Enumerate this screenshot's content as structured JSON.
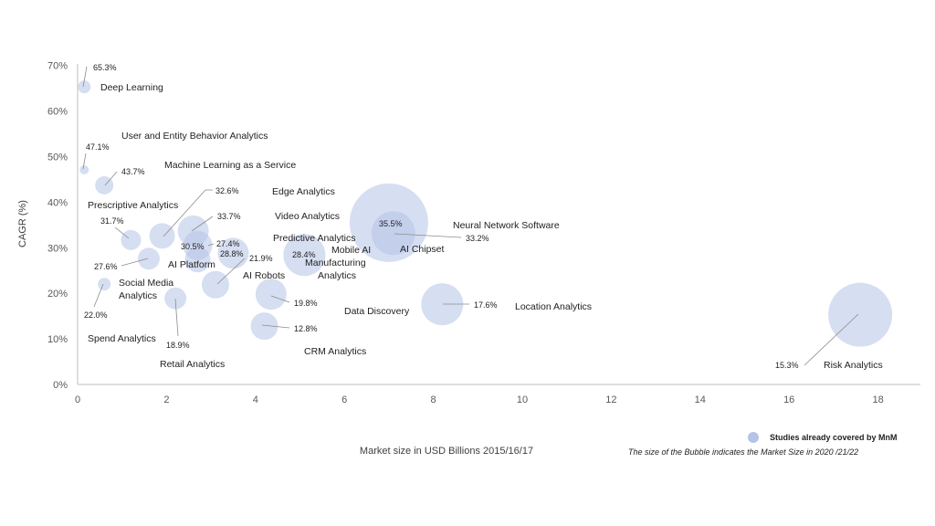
{
  "chart_data": {
    "type": "scatter",
    "subtype": "bubble",
    "xlabel": "Market size in USD Billions 2015/16/17",
    "ylabel": "CAGR (%)",
    "xlim": [
      0,
      19
    ],
    "ylim": [
      0,
      70
    ],
    "xticks": [
      "0",
      "2",
      "4",
      "6",
      "8",
      "10",
      "12",
      "14",
      "16",
      "18"
    ],
    "yticks": [
      "0%",
      "10%",
      "20%",
      "30%",
      "40%",
      "50%",
      "60%",
      "70%"
    ],
    "grid": false,
    "legend": {
      "label": "Studies already covered by MnM",
      "position": "bottom-right",
      "color": "#b4c3e6"
    },
    "note": "The size of the Bubble indicates the Market Size in 2020 /21/22",
    "points": [
      {
        "name": "Deep Learning",
        "x": 0.15,
        "y": 65.3,
        "pct": "65.3%",
        "r": 7
      },
      {
        "name": "User and Entity Behavior Analytics",
        "x": 0.15,
        "y": 47.1,
        "pct": "47.1%",
        "r": 5
      },
      {
        "name": "Machine Learning as a Service",
        "x": 0.6,
        "y": 43.7,
        "pct": "43.7%",
        "r": 10
      },
      {
        "name": "Prescriptive Analytics",
        "x": 1.2,
        "y": 31.7,
        "pct": "31.7%",
        "r": 11
      },
      {
        "name": "Edge Analytics",
        "x": 1.9,
        "y": 32.6,
        "pct": "32.6%",
        "r": 14
      },
      {
        "name": "Video Analytics",
        "x": 2.6,
        "y": 33.7,
        "pct": "33.7%",
        "r": 17
      },
      {
        "name": "AI Platform",
        "x": 1.6,
        "y": 27.6,
        "pct": "27.6%",
        "r": 12
      },
      {
        "name": "Social Media Analytics",
        "x": 0.6,
        "y": 22.0,
        "pct": "22.0%",
        "r": 7
      },
      {
        "name": "Spend Analytics",
        "x": 2.2,
        "y": 18.9,
        "pct": "18.9%",
        "r": 12
      },
      {
        "name": "Predictive Analytics",
        "x": 2.7,
        "y": 30.5,
        "pct": "30.5%",
        "r": 16
      },
      {
        "name": "AI Robots",
        "x": 2.7,
        "y": 27.4,
        "pct": "27.4%",
        "r": 14
      },
      {
        "name": "Manufacturing Analytics",
        "x": 3.5,
        "y": 28.8,
        "pct": "28.8%",
        "r": 17
      },
      {
        "name": "Retail Analytics",
        "x": 3.1,
        "y": 21.9,
        "pct": "21.9%",
        "r": 15
      },
      {
        "name": "Mobile AI",
        "x": 5.1,
        "y": 28.4,
        "pct": "28.4%",
        "r": 23
      },
      {
        "name": "CRM Analytics",
        "x": 4.35,
        "y": 19.8,
        "pct": "19.8%",
        "r": 17
      },
      {
        "name": "Data Discovery",
        "x": 4.2,
        "y": 12.8,
        "pct": "12.8%",
        "r": 15
      },
      {
        "name": "Neural Network Software",
        "x": 7.0,
        "y": 35.5,
        "pct": "35.5%",
        "r": 43
      },
      {
        "name": "AI Chipset",
        "x": 7.1,
        "y": 33.2,
        "pct": "33.2%",
        "r": 24
      },
      {
        "name": "Location Analytics",
        "x": 8.2,
        "y": 17.6,
        "pct": "17.6%",
        "r": 23
      },
      {
        "name": "Risk Analytics",
        "x": 17.6,
        "y": 15.3,
        "pct": "15.3%",
        "r": 35
      }
    ]
  }
}
